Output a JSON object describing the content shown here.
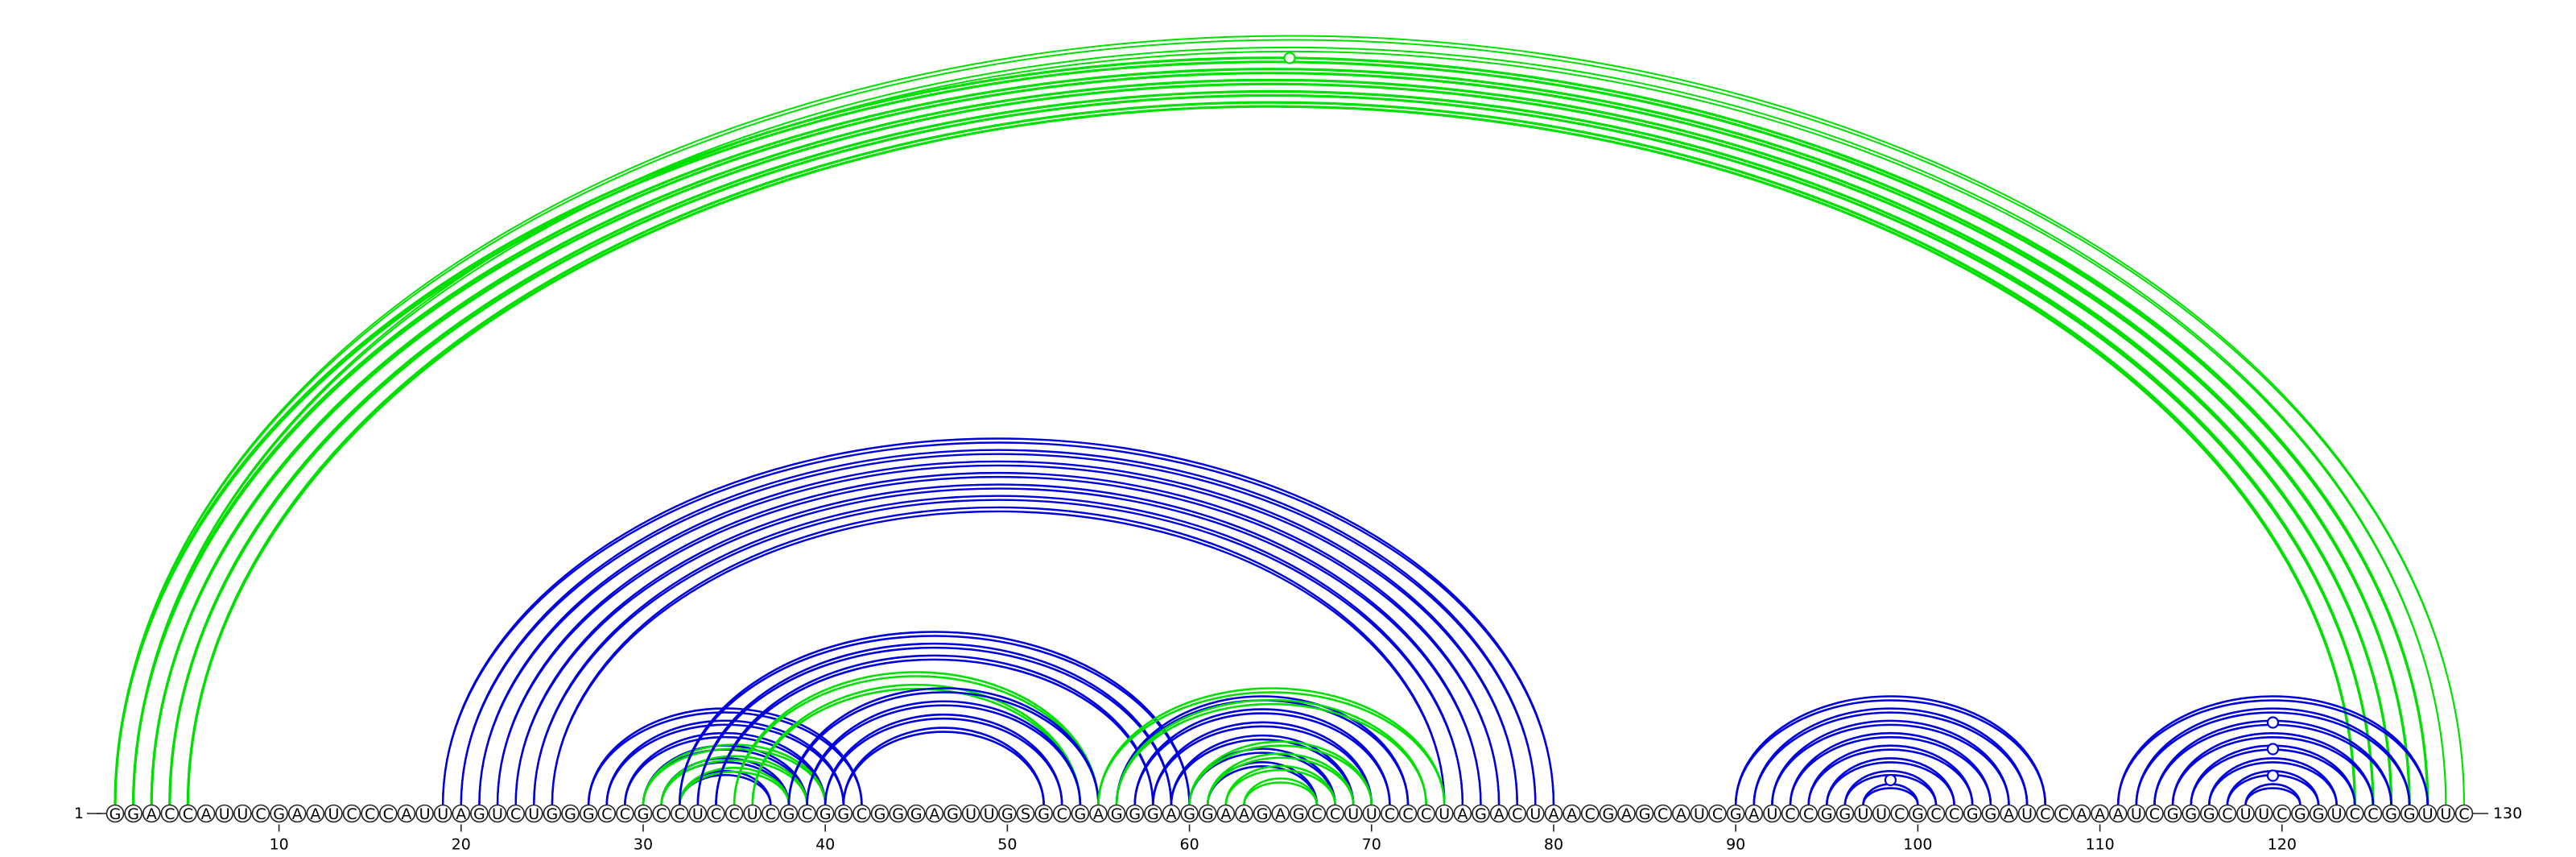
{
  "sequence": "GGACCAUUCGAAUCCCAUUAGUCUGGGCCGCCUCCUCGCGGCGGGAGUUGSGCGAGGGAGGAAGAGCCUUCCCUAGACUAACGAGCAUCGAUCCGGUUCGCCGGAUCCAAAUCGGGCUUCGGUCCGGUUC",
  "start_label": "1",
  "end_label": "130",
  "tick_labels": [
    "10",
    "20",
    "30",
    "40",
    "50",
    "60",
    "70",
    "80",
    "90",
    "100",
    "110",
    "120"
  ],
  "colors": {
    "structure_a": "#0000dd",
    "structure_b": "#00e000",
    "backbone": "#222222"
  },
  "base_pairs": {
    "green_outer": [
      [
        1,
        128
      ],
      [
        2,
        127
      ],
      [
        3,
        126
      ],
      [
        4,
        125
      ],
      [
        5,
        124
      ]
    ],
    "green_outer_thin": [
      [
        1,
        130
      ],
      [
        2,
        129
      ]
    ],
    "blue_large": [
      [
        19,
        80
      ],
      [
        20,
        79
      ],
      [
        21,
        78
      ],
      [
        22,
        77
      ],
      [
        23,
        76
      ],
      [
        24,
        75
      ],
      [
        25,
        74
      ]
    ],
    "blue_left": [
      [
        27,
        42
      ],
      [
        28,
        41
      ],
      [
        29,
        40
      ],
      [
        30,
        39
      ],
      [
        31,
        38
      ],
      [
        32,
        37
      ]
    ],
    "green_left": [
      [
        30,
        40
      ],
      [
        31,
        39
      ],
      [
        32,
        38
      ]
    ],
    "blue_mid": [
      [
        32,
        60
      ],
      [
        33,
        59
      ],
      [
        34,
        58
      ]
    ],
    "green_mid": [
      [
        35,
        55
      ],
      [
        36,
        54
      ]
    ],
    "blue_inner": [
      [
        38,
        55
      ],
      [
        39,
        54
      ],
      [
        40,
        53
      ],
      [
        41,
        52
      ]
    ],
    "blue_right": [
      [
        56,
        72
      ],
      [
        57,
        71
      ],
      [
        58,
        70
      ],
      [
        59,
        69
      ],
      [
        60,
        68
      ],
      [
        61,
        67
      ]
    ],
    "green_right": [
      [
        55,
        74
      ],
      [
        56,
        73
      ],
      [
        60,
        70
      ],
      [
        61,
        69
      ],
      [
        62,
        68
      ],
      [
        63,
        67
      ]
    ],
    "blue_hairpin1": [
      [
        90,
        107
      ],
      [
        91,
        106
      ],
      [
        92,
        105
      ],
      [
        93,
        104
      ],
      [
        94,
        103
      ],
      [
        95,
        102
      ],
      [
        96,
        101
      ],
      [
        97,
        100
      ]
    ],
    "blue_hairpin2": [
      [
        111,
        128
      ],
      [
        112,
        127
      ],
      [
        113,
        126
      ],
      [
        114,
        125
      ],
      [
        115,
        124
      ],
      [
        116,
        123
      ],
      [
        117,
        122
      ],
      [
        118,
        121
      ]
    ]
  },
  "markers": [
    {
      "color": "structure_b",
      "position": 65.5,
      "level": 1.0
    },
    {
      "color": "structure_a",
      "position": 98.5,
      "level": 0.1
    },
    {
      "color": "structure_a",
      "position": 119.5,
      "level": 0.75
    },
    {
      "color": "structure_a",
      "position": 119.5,
      "level": 0.45
    },
    {
      "color": "structure_a",
      "position": 119.5,
      "level": 0.15
    }
  ]
}
